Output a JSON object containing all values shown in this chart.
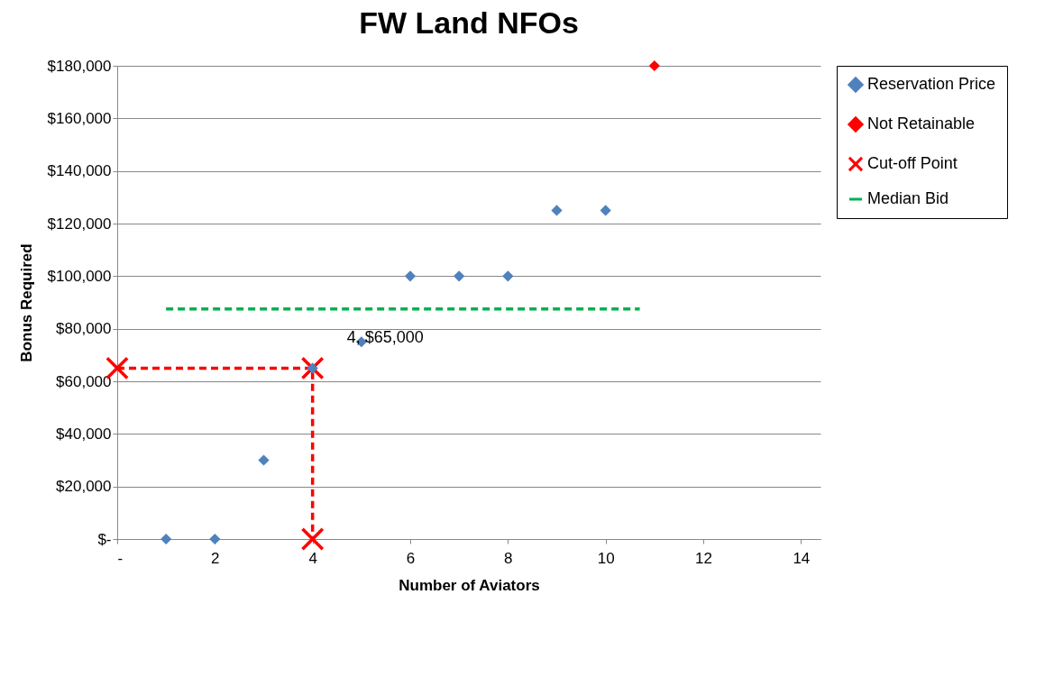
{
  "chart_data": {
    "type": "scatter",
    "title": "FW Land NFOs",
    "xlabel": "Number of Aviators",
    "ylabel": "Bonus Required",
    "xlim": [
      0,
      14.4
    ],
    "xticks": [
      {
        "value": 0,
        "label": "-"
      },
      2,
      4,
      6,
      8,
      10,
      12,
      14
    ],
    "ylim": [
      0,
      180000
    ],
    "yticks": [
      {
        "value": 0,
        "label": "$-"
      },
      {
        "value": 20000,
        "label": "$20,000"
      },
      {
        "value": 40000,
        "label": "$40,000"
      },
      {
        "value": 60000,
        "label": "$60,000"
      },
      {
        "value": 80000,
        "label": "$80,000"
      },
      {
        "value": 100000,
        "label": "$100,000"
      },
      {
        "value": 120000,
        "label": "$120,000"
      },
      {
        "value": 140000,
        "label": "$140,000"
      },
      {
        "value": 160000,
        "label": "$160,000"
      },
      {
        "value": 180000,
        "label": "$180,000"
      }
    ],
    "grid": "y",
    "legend": "right",
    "series": [
      {
        "name": "Reservation Price",
        "type": "scatter",
        "marker": "diamond",
        "color": "#4f81bd",
        "x": [
          1,
          2,
          3,
          4,
          5,
          6,
          7,
          8,
          9,
          10
        ],
        "values": [
          0,
          0,
          30000,
          65000,
          75000,
          100000,
          100000,
          100000,
          125000,
          125000
        ]
      },
      {
        "name": "Not Retainable",
        "type": "scatter",
        "marker": "diamond",
        "color": "#ff0000",
        "x": [
          11
        ],
        "values": [
          180000
        ]
      },
      {
        "name": "Cut-off Point",
        "type": "line",
        "marker": "cross",
        "line_style": "dashed",
        "color": "#ff0000",
        "x": [
          0,
          4,
          4
        ],
        "values": [
          65000,
          65000,
          0
        ]
      },
      {
        "name": "Median Bid",
        "type": "line",
        "marker": "none",
        "line_style": "dashed",
        "color": "#00b050",
        "x": [
          1,
          10.7
        ],
        "values": [
          87500,
          87500
        ]
      }
    ],
    "annotations": [
      {
        "text": "4, $65,000",
        "x": 4,
        "y": 65000
      }
    ]
  }
}
